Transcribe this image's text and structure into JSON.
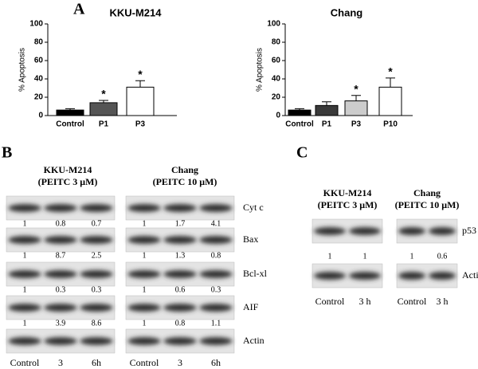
{
  "chart_data": [
    {
      "type": "bar",
      "title": "KKU-M214",
      "ylabel": "% Apoptosis",
      "categories": [
        "Control",
        "P1",
        "P3"
      ],
      "series": [
        {
          "values": [
            6,
            14,
            31
          ],
          "errors": [
            1.5,
            2.5,
            7
          ],
          "colors": [
            "#000000",
            "#555555",
            "#ffffff"
          ],
          "markers": [
            null,
            "*",
            "*"
          ]
        }
      ],
      "ylim": [
        0,
        100
      ],
      "yticks": [
        0,
        20,
        40,
        60,
        80,
        100
      ]
    },
    {
      "type": "bar",
      "title": "Chang",
      "ylabel": "% Apoptosis",
      "categories": [
        "Control",
        "P1",
        "P3",
        "P10"
      ],
      "series": [
        {
          "values": [
            6,
            11,
            16,
            31
          ],
          "errors": [
            1.5,
            4,
            6,
            10
          ],
          "colors": [
            "#000000",
            "#3a3a3a",
            "#cccccc",
            "#ffffff"
          ],
          "markers": [
            null,
            null,
            "*",
            "*"
          ]
        }
      ],
      "ylim": [
        0,
        100
      ],
      "yticks": [
        0,
        20,
        40,
        60,
        80,
        100
      ]
    }
  ],
  "panel_a": {
    "label": "A"
  },
  "panel_b": {
    "label": "B",
    "proteins": [
      "Cyt c",
      "Bax",
      "Bcl-xl",
      "AIF",
      "Actin"
    ],
    "groups": [
      {
        "title": "KKU-M214",
        "subtitle": "(PEITC 3 μM)",
        "lanes": [
          "Control",
          "3",
          "6h"
        ],
        "rows": [
          [
            1,
            0.8,
            0.7
          ],
          [
            1,
            8.7,
            2.5
          ],
          [
            1,
            0.3,
            0.3
          ],
          [
            1,
            3.9,
            8.6
          ]
        ]
      },
      {
        "title": "Chang",
        "subtitle": "(PEITC 10 μM)",
        "lanes": [
          "Control",
          "3",
          "6h"
        ],
        "rows": [
          [
            1,
            1.7,
            4.1
          ],
          [
            1,
            1.3,
            0.8
          ],
          [
            1,
            0.6,
            0.3
          ],
          [
            1,
            0.8,
            1.1
          ]
        ]
      }
    ]
  },
  "panel_c": {
    "label": "C",
    "proteins": [
      "p53",
      "Actin"
    ],
    "groups": [
      {
        "title": "KKU-M214",
        "subtitle": "(PEITC 3 μM)",
        "lanes": [
          "Control",
          "3 h"
        ],
        "rows": [
          [
            1,
            1
          ]
        ]
      },
      {
        "title": "Chang",
        "subtitle": "(PEITC 10 μM)",
        "lanes": [
          "Control",
          "3 h"
        ],
        "rows": [
          [
            1,
            0.6
          ]
        ]
      }
    ]
  }
}
